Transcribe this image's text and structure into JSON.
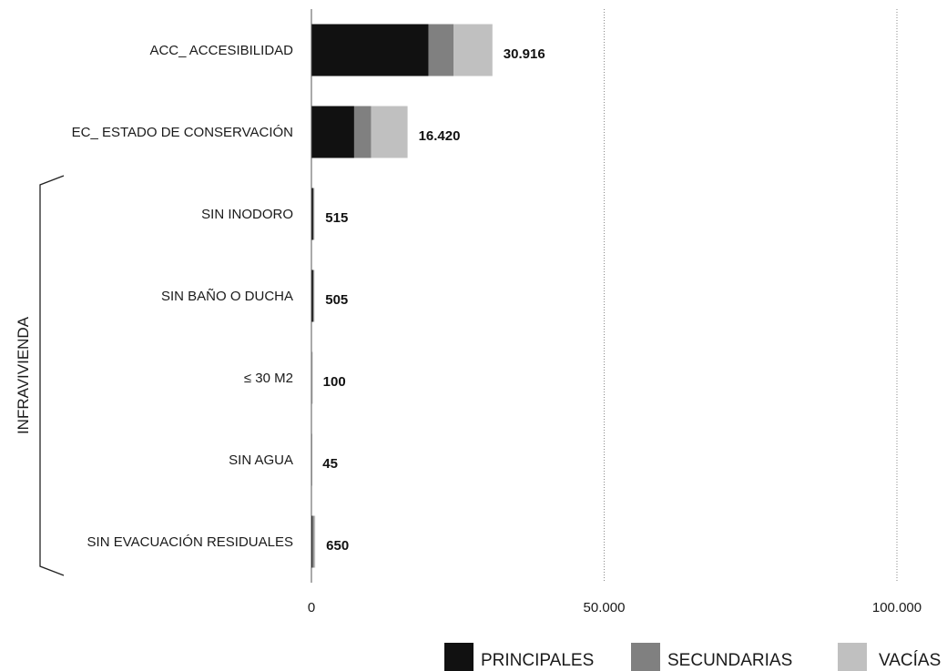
{
  "chart_data": {
    "type": "bar",
    "orientation": "horizontal",
    "stacked": true,
    "categories": [
      "ACC_ ACCESIBILIDAD",
      "EC_ ESTADO DE CONSERVACIÓN",
      "SIN INODORO",
      "SIN BAÑO O DUCHA",
      "≤ 30 M2",
      "SIN AGUA",
      "SIN EVACUACIÓN RESIDUALES"
    ],
    "series": [
      {
        "name": "PRINCIPALES",
        "color": "#111111",
        "values": [
          20000,
          7300,
          300,
          300,
          60,
          25,
          200
        ]
      },
      {
        "name": "SECUNDARIAS",
        "color": "#808080",
        "values": [
          4300,
          2900,
          100,
          100,
          20,
          10,
          250
        ]
      },
      {
        "name": "VACÍAS",
        "color": "#c0c0c0",
        "values": [
          6616,
          6220,
          115,
          105,
          20,
          10,
          200
        ]
      }
    ],
    "data_labels": [
      "30.916",
      "16.420",
      "515",
      "505",
      "100",
      "45",
      "650"
    ],
    "xlim": [
      0,
      100000
    ],
    "x_ticks": [
      0,
      50000,
      100000
    ],
    "x_tick_labels": [
      "0",
      "50.000",
      "100.000"
    ],
    "grid": "vertical dotted",
    "legend_position": "bottom-right",
    "group_bracket": {
      "label": "INFRAVIVIENDA",
      "from_category": 2,
      "to_category": 6
    },
    "title": "",
    "xlabel": "",
    "ylabel": ""
  }
}
